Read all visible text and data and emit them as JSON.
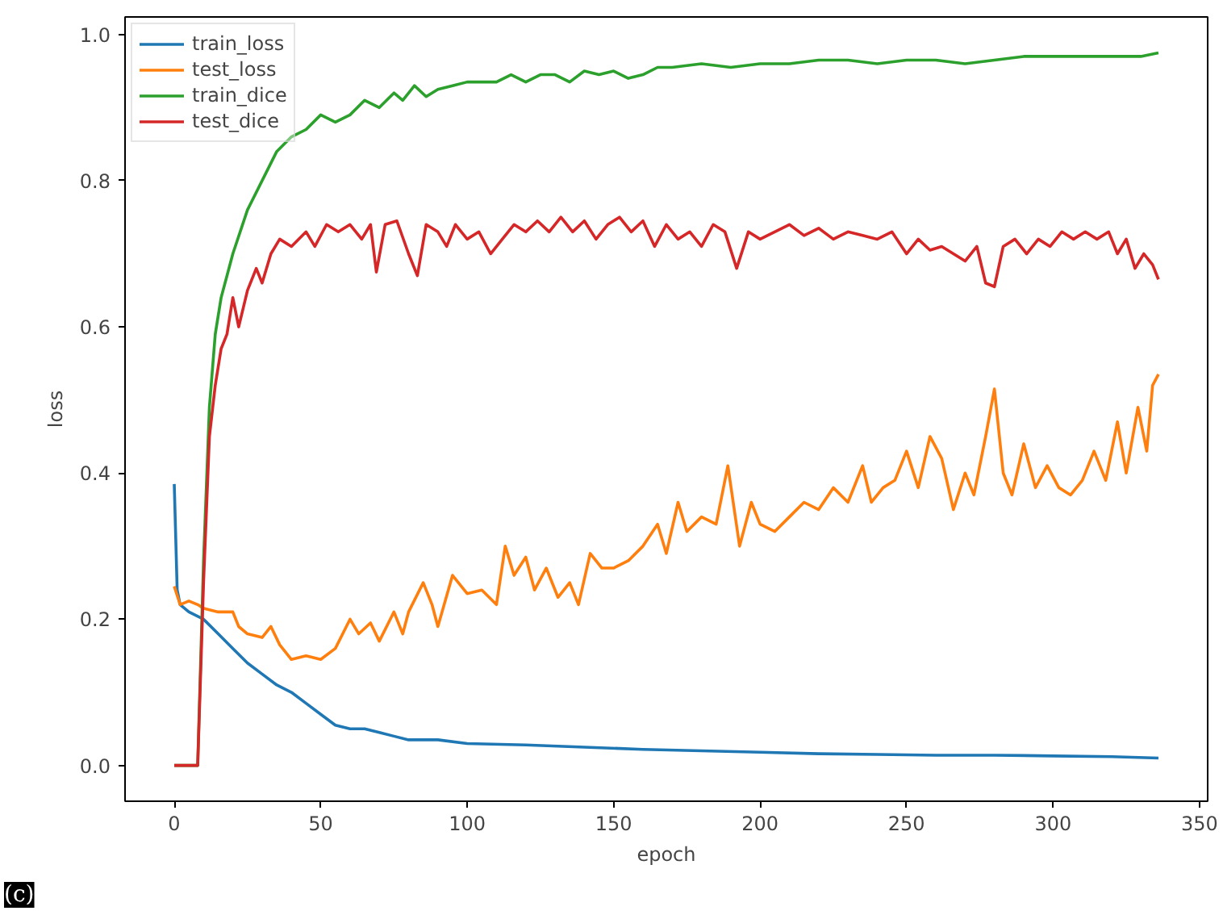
{
  "chart_data": {
    "type": "line",
    "xlabel": "epoch",
    "ylabel": "loss",
    "xlim": [
      -16.8,
      352.8
    ],
    "ylim": [
      -0.049,
      1.024
    ],
    "xticks": [
      0,
      50,
      100,
      150,
      200,
      250,
      300,
      350
    ],
    "yticks": [
      {
        "value": 0,
        "label": "0.0"
      },
      {
        "value": 0.2,
        "label": "0.2"
      },
      {
        "value": 0.4,
        "label": "0.4"
      },
      {
        "value": 0.6,
        "label": "0.6"
      },
      {
        "value": 0.8,
        "label": "0.8"
      },
      {
        "value": 1.0,
        "label": "1.0"
      }
    ],
    "grid": false,
    "legend": "top left",
    "marker": "none",
    "line_style": "solid",
    "annotations": [
      "(c)"
    ],
    "series": [
      {
        "name": "train_loss",
        "color": "#1f77b4",
        "x": [
          0,
          1,
          2,
          5,
          10,
          15,
          20,
          25,
          30,
          35,
          40,
          45,
          50,
          55,
          60,
          65,
          70,
          75,
          80,
          90,
          100,
          120,
          140,
          160,
          180,
          200,
          220,
          240,
          260,
          280,
          300,
          320,
          336
        ],
        "values": [
          0.385,
          0.24,
          0.22,
          0.21,
          0.2,
          0.18,
          0.16,
          0.14,
          0.125,
          0.11,
          0.1,
          0.085,
          0.07,
          0.055,
          0.05,
          0.05,
          0.045,
          0.04,
          0.035,
          0.035,
          0.03,
          0.028,
          0.025,
          0.022,
          0.02,
          0.018,
          0.016,
          0.015,
          0.014,
          0.014,
          0.013,
          0.012,
          0.01
        ]
      },
      {
        "name": "test_loss",
        "color": "#ff7f0e",
        "x": [
          0,
          2,
          5,
          8,
          10,
          15,
          20,
          22,
          25,
          30,
          33,
          36,
          40,
          45,
          50,
          55,
          60,
          63,
          67,
          70,
          75,
          78,
          80,
          85,
          88,
          90,
          95,
          100,
          105,
          110,
          113,
          116,
          120,
          123,
          127,
          131,
          135,
          138,
          142,
          146,
          150,
          155,
          160,
          165,
          168,
          172,
          175,
          180,
          185,
          189,
          193,
          197,
          200,
          205,
          210,
          215,
          220,
          225,
          230,
          235,
          238,
          242,
          246,
          250,
          254,
          258,
          262,
          266,
          270,
          273,
          277,
          280,
          283,
          286,
          290,
          294,
          298,
          302,
          306,
          310,
          314,
          318,
          322,
          325,
          329,
          332,
          334,
          336
        ],
        "values": [
          0.245,
          0.22,
          0.225,
          0.22,
          0.215,
          0.21,
          0.21,
          0.19,
          0.18,
          0.175,
          0.19,
          0.165,
          0.145,
          0.15,
          0.145,
          0.16,
          0.2,
          0.18,
          0.195,
          0.17,
          0.21,
          0.18,
          0.21,
          0.25,
          0.22,
          0.19,
          0.26,
          0.235,
          0.24,
          0.22,
          0.3,
          0.26,
          0.285,
          0.24,
          0.27,
          0.23,
          0.25,
          0.22,
          0.29,
          0.27,
          0.27,
          0.28,
          0.3,
          0.33,
          0.29,
          0.36,
          0.32,
          0.34,
          0.33,
          0.41,
          0.3,
          0.36,
          0.33,
          0.32,
          0.34,
          0.36,
          0.35,
          0.38,
          0.36,
          0.41,
          0.36,
          0.38,
          0.39,
          0.43,
          0.38,
          0.45,
          0.42,
          0.35,
          0.4,
          0.37,
          0.45,
          0.515,
          0.4,
          0.37,
          0.44,
          0.38,
          0.41,
          0.38,
          0.37,
          0.39,
          0.43,
          0.39,
          0.47,
          0.4,
          0.49,
          0.43,
          0.52,
          0.535
        ]
      },
      {
        "name": "train_dice",
        "color": "#2ca02c",
        "x": [
          0,
          8,
          10,
          12,
          14,
          16,
          18,
          20,
          25,
          30,
          35,
          40,
          45,
          50,
          55,
          60,
          65,
          70,
          75,
          78,
          82,
          86,
          90,
          95,
          100,
          110,
          115,
          120,
          125,
          130,
          135,
          140,
          145,
          150,
          155,
          160,
          165,
          170,
          180,
          190,
          200,
          210,
          220,
          230,
          240,
          250,
          260,
          270,
          280,
          290,
          300,
          310,
          320,
          330,
          336
        ],
        "values": [
          0,
          0,
          0.28,
          0.49,
          0.59,
          0.64,
          0.67,
          0.7,
          0.76,
          0.8,
          0.84,
          0.86,
          0.87,
          0.89,
          0.88,
          0.89,
          0.91,
          0.9,
          0.92,
          0.91,
          0.93,
          0.915,
          0.925,
          0.93,
          0.935,
          0.935,
          0.945,
          0.935,
          0.945,
          0.945,
          0.935,
          0.95,
          0.945,
          0.95,
          0.94,
          0.945,
          0.955,
          0.955,
          0.96,
          0.955,
          0.96,
          0.96,
          0.965,
          0.965,
          0.96,
          0.965,
          0.965,
          0.96,
          0.965,
          0.97,
          0.97,
          0.97,
          0.97,
          0.97,
          0.975
        ]
      },
      {
        "name": "test_dice",
        "color": "#d62728",
        "x": [
          0,
          8,
          10,
          12,
          14,
          16,
          18,
          20,
          22,
          25,
          28,
          30,
          33,
          36,
          40,
          45,
          48,
          52,
          56,
          60,
          64,
          67,
          69,
          72,
          76,
          80,
          83,
          86,
          90,
          93,
          96,
          100,
          104,
          108,
          112,
          116,
          120,
          124,
          128,
          132,
          136,
          140,
          144,
          148,
          152,
          156,
          160,
          164,
          168,
          172,
          176,
          180,
          184,
          188,
          192,
          196,
          200,
          205,
          210,
          215,
          220,
          225,
          230,
          235,
          240,
          245,
          250,
          254,
          258,
          262,
          266,
          270,
          274,
          277,
          280,
          283,
          287,
          291,
          295,
          299,
          303,
          307,
          311,
          315,
          319,
          322,
          325,
          328,
          331,
          334,
          336
        ],
        "values": [
          0,
          0,
          0.25,
          0.45,
          0.52,
          0.57,
          0.59,
          0.64,
          0.6,
          0.65,
          0.68,
          0.66,
          0.7,
          0.72,
          0.71,
          0.73,
          0.71,
          0.74,
          0.73,
          0.74,
          0.72,
          0.74,
          0.675,
          0.74,
          0.745,
          0.7,
          0.67,
          0.74,
          0.73,
          0.71,
          0.74,
          0.72,
          0.73,
          0.7,
          0.72,
          0.74,
          0.73,
          0.745,
          0.73,
          0.75,
          0.73,
          0.745,
          0.72,
          0.74,
          0.75,
          0.73,
          0.745,
          0.71,
          0.74,
          0.72,
          0.73,
          0.71,
          0.74,
          0.73,
          0.68,
          0.73,
          0.72,
          0.73,
          0.74,
          0.725,
          0.735,
          0.72,
          0.73,
          0.725,
          0.72,
          0.73,
          0.7,
          0.72,
          0.705,
          0.71,
          0.7,
          0.69,
          0.71,
          0.66,
          0.655,
          0.71,
          0.72,
          0.7,
          0.72,
          0.71,
          0.73,
          0.72,
          0.73,
          0.72,
          0.73,
          0.7,
          0.72,
          0.68,
          0.7,
          0.685,
          0.665
        ]
      }
    ]
  }
}
